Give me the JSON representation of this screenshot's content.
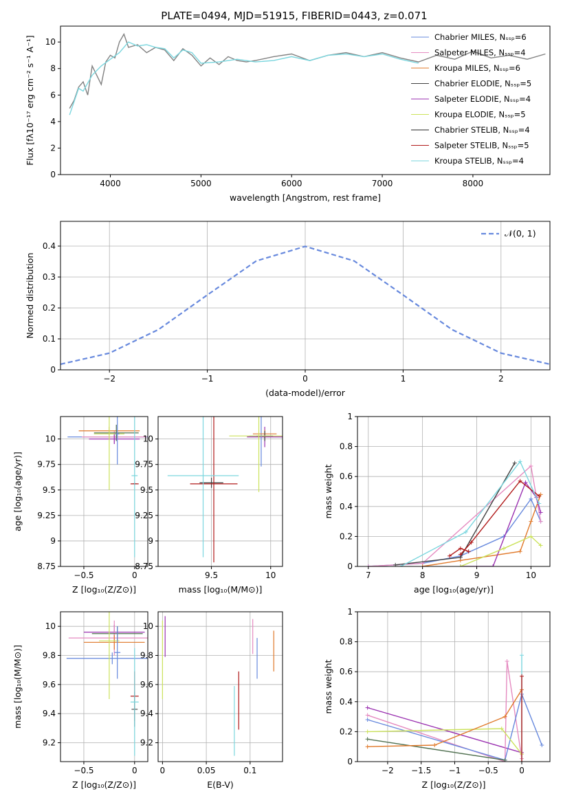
{
  "figure": {
    "title": "PLATE=0494, MJD=51915, FIBERID=0443, z=0.071",
    "colors": {
      "gray": "#808080",
      "blue": "#6688dd",
      "pink": "#e58ac0",
      "orange": "#e07828",
      "dark": "#404040",
      "purple": "#9a30b0",
      "yellow": "#cbe25a",
      "black": "#202020",
      "red": "#b01818",
      "cyan": "#7ad6de",
      "green": "#507050"
    }
  },
  "panels": [
    {
      "id": "spectrum",
      "type": "line",
      "xlabel": "wavelength [Angstrom, rest frame]",
      "ylabel": "Flux [fλ10⁻¹⁷ erg cm⁻² s⁻¹ A⁻¹]",
      "xlim": [
        3450,
        8850
      ],
      "ylim": [
        0,
        11.2
      ],
      "xticks": [
        4000,
        5000,
        6000,
        7000,
        8000
      ],
      "yticks": [
        0,
        2,
        4,
        6,
        8,
        10
      ],
      "legend": [
        {
          "label": "Chabrier MILES, Nₛₛₚ=6",
          "color": "blue"
        },
        {
          "label": "Salpeter MILES, Nₛₛₚ=4",
          "color": "pink"
        },
        {
          "label": "Kroupa MILES, Nₛₛₚ=6",
          "color": "orange"
        },
        {
          "label": "Chabrier ELODIE, Nₛₛₚ=5",
          "color": "dark"
        },
        {
          "label": "Salpeter ELODIE, Nₛₛₚ=4",
          "color": "purple"
        },
        {
          "label": "Kroupa ELODIE, Nₛₛₚ=5",
          "color": "yellow"
        },
        {
          "label": "Chabrier STELIB, Nₛₛₚ=4",
          "color": "black"
        },
        {
          "label": "Salpeter STELIB, Nₛₛₚ=5",
          "color": "red"
        },
        {
          "label": "Kroupa STELIB, Nₛₛₚ=4",
          "color": "cyan"
        }
      ],
      "series": [
        {
          "color": "gray",
          "x": [
            3550,
            3600,
            3650,
            3700,
            3750,
            3800,
            3850,
            3900,
            3950,
            4000,
            4050,
            4100,
            4150,
            4200,
            4300,
            4400,
            4500,
            4600,
            4700,
            4800,
            4900,
            5000,
            5100,
            5200,
            5300,
            5400,
            5500,
            5600,
            5800,
            6000,
            6200,
            6400,
            6600,
            6800,
            7000,
            7200,
            7400,
            7600,
            7800,
            8000,
            8200,
            8400,
            8600,
            8800
          ],
          "y": [
            5.0,
            5.6,
            6.6,
            7.0,
            6.0,
            8.2,
            7.5,
            6.8,
            8.5,
            9.0,
            8.8,
            10.0,
            10.6,
            9.6,
            9.8,
            9.2,
            9.6,
            9.4,
            8.6,
            9.5,
            9.0,
            8.2,
            8.8,
            8.3,
            8.9,
            8.6,
            8.5,
            8.6,
            8.9,
            9.1,
            8.6,
            9.0,
            9.2,
            8.9,
            9.2,
            8.8,
            8.5,
            9.0,
            8.7,
            9.3,
            8.8,
            9.0,
            8.7,
            9.1
          ]
        },
        {
          "color": "cyan",
          "x": [
            3550,
            3600,
            3650,
            3700,
            3800,
            3900,
            4000,
            4100,
            4200,
            4300,
            4400,
            4500,
            4600,
            4700,
            4800,
            4900,
            5000,
            5200,
            5400,
            5600,
            5800,
            6000,
            6200,
            6400,
            6600,
            6800,
            7000,
            7200,
            7400
          ],
          "y": [
            4.5,
            5.5,
            6.5,
            6.3,
            7.5,
            8.2,
            8.7,
            9.2,
            10.0,
            9.7,
            9.8,
            9.6,
            9.5,
            8.8,
            9.4,
            9.2,
            8.4,
            8.5,
            8.7,
            8.5,
            8.6,
            8.9,
            8.6,
            9.0,
            9.1,
            8.9,
            9.1,
            8.7,
            8.4
          ]
        }
      ]
    },
    {
      "id": "residuals",
      "type": "line",
      "xlabel": "(data-model)/error",
      "ylabel": "Normed distribution",
      "xlim": [
        -2.5,
        2.5
      ],
      "ylim": [
        0,
        0.48
      ],
      "xticks": [
        -2,
        -1,
        0,
        1,
        2
      ],
      "yticks": [
        0.0,
        0.1,
        0.2,
        0.3,
        0.4
      ],
      "legend": [
        {
          "label": "𝒩(0, 1)",
          "color": "blue"
        }
      ],
      "series": [
        {
          "color": "blue",
          "x": [
            -2.5,
            -2.0,
            -1.5,
            -1.0,
            -0.5,
            0.0,
            0.5,
            1.0,
            1.5,
            2.0,
            2.5
          ],
          "y": [
            0.018,
            0.054,
            0.13,
            0.242,
            0.352,
            0.399,
            0.352,
            0.242,
            0.13,
            0.054,
            0.018
          ]
        }
      ]
    },
    {
      "id": "age-vs-Z",
      "type": "scatter",
      "xlabel": "Z [log₁₀(Z/Z⊙)]",
      "ylabel": "age  [log₁₀(age/yr)]",
      "xlim": [
        -0.73,
        0.13
      ],
      "ylim": [
        8.75,
        10.22
      ],
      "xticks": [
        -0.5,
        0.0
      ],
      "yticks": [
        8.75,
        9.0,
        9.25,
        9.5,
        9.75,
        10.0
      ],
      "points": [
        {
          "x": -0.18,
          "y": 10.02,
          "xerr": 0.48,
          "yerr": 0.03,
          "color": "blue"
        },
        {
          "x": -0.2,
          "y": 10.02,
          "xerr": 0.32,
          "yerr": 0.06,
          "color": "pink"
        },
        {
          "x": -0.25,
          "y": 10.08,
          "xerr": 0.3,
          "yerr": 0.04,
          "color": "orange"
        },
        {
          "x": -0.18,
          "y": 10.06,
          "xerr": 0.22,
          "yerr": 0.08,
          "color": "green"
        },
        {
          "x": -0.2,
          "y": 10.0,
          "xerr": 0.25,
          "yerr": 0.05,
          "color": "purple"
        },
        {
          "x": -0.25,
          "y": 10.05,
          "xerr": 0.15,
          "yerr": 0.55,
          "color": "yellow"
        },
        {
          "x": 0.0,
          "y": 9.56,
          "xerr": 0.02,
          "yerr": 0.01,
          "color": "dark"
        },
        {
          "x": 0.0,
          "y": 9.56,
          "xerr": 0.04,
          "yerr": 0.01,
          "color": "red"
        },
        {
          "x": 0.0,
          "y": 9.64,
          "xerr": 0.03,
          "yerr": 0.8,
          "color": "cyan"
        },
        {
          "x": -0.17,
          "y": 10.05,
          "xerr": 0.02,
          "yerr": 0.3,
          "color": "blue"
        }
      ]
    },
    {
      "id": "age-vs-mass",
      "type": "scatter",
      "xlabel": "mass [log₁₀(M/M⊙)]",
      "ylabel": "",
      "xlim": [
        9.05,
        10.1
      ],
      "ylim": [
        8.75,
        10.22
      ],
      "xticks": [
        9.5,
        10.0
      ],
      "yticks": [
        8.75,
        9.0,
        9.25,
        9.5,
        9.75,
        10.0
      ],
      "points": [
        {
          "x": 9.95,
          "y": 10.02,
          "xerr": 0.15,
          "yerr": 0.1,
          "color": "purple"
        },
        {
          "x": 9.92,
          "y": 10.03,
          "xerr": 0.1,
          "yerr": 0.3,
          "color": "blue"
        },
        {
          "x": 9.95,
          "y": 10.05,
          "xerr": 0.1,
          "yerr": 0.04,
          "color": "orange"
        },
        {
          "x": 9.95,
          "y": 10.03,
          "xerr": 0.07,
          "yerr": 0.05,
          "color": "dark"
        },
        {
          "x": 9.9,
          "y": 10.03,
          "xerr": 0.25,
          "yerr": 0.55,
          "color": "yellow"
        },
        {
          "x": 9.5,
          "y": 9.57,
          "xerr": 0.1,
          "yerr": 0.05,
          "color": "dark"
        },
        {
          "x": 9.52,
          "y": 9.56,
          "xerr": 0.2,
          "yerr": 0.77,
          "color": "red"
        },
        {
          "x": 9.43,
          "y": 9.64,
          "xerr": 0.3,
          "yerr": 0.8,
          "color": "cyan"
        }
      ]
    },
    {
      "id": "weight-vs-age",
      "type": "line",
      "xlabel": "age  [log₁₀(age/yr)]",
      "ylabel": "mass weight",
      "xlim": [
        6.8,
        10.35
      ],
      "ylim": [
        0,
        1.0
      ],
      "xticks": [
        7,
        8,
        9,
        10
      ],
      "yticks": [
        0.0,
        0.2,
        0.4,
        0.6,
        0.8,
        1.0
      ],
      "series": [
        {
          "color": "blue",
          "x": [
            7.0,
            8.0,
            8.7,
            9.5,
            10.0,
            10.18
          ],
          "y": [
            0.0,
            0.02,
            0.07,
            0.2,
            0.45,
            0.3
          ]
        },
        {
          "color": "pink",
          "x": [
            7.0,
            8.0,
            10.0,
            10.18
          ],
          "y": [
            0.0,
            0.02,
            0.67,
            0.3
          ]
        },
        {
          "color": "orange",
          "x": [
            8.0,
            8.7,
            9.8,
            10.0,
            10.18
          ],
          "y": [
            0.0,
            0.04,
            0.1,
            0.3,
            0.48
          ]
        },
        {
          "color": "dark",
          "x": [
            7.5,
            8.7,
            9.7
          ],
          "y": [
            0.01,
            0.06,
            0.69
          ]
        },
        {
          "color": "purple",
          "x": [
            8.7,
            9.3,
            9.9,
            10.1,
            10.18
          ],
          "y": [
            0.0,
            0.0,
            0.56,
            0.46,
            0.36
          ]
        },
        {
          "color": "yellow",
          "x": [
            8.7,
            9.5,
            10.0,
            10.18
          ],
          "y": [
            0.0,
            0.12,
            0.2,
            0.14
          ]
        },
        {
          "color": "red",
          "x": [
            8.7,
            8.9,
            9.8,
            10.15
          ],
          "y": [
            0.08,
            0.16,
            0.57,
            0.47
          ]
        },
        {
          "color": "cyan",
          "x": [
            7.6,
            8.8,
            9.8,
            10.15
          ],
          "y": [
            0.0,
            0.23,
            0.7,
            0.42
          ]
        },
        {
          "color": "red",
          "x": [
            8.5,
            8.7,
            8.85
          ],
          "y": [
            0.07,
            0.12,
            0.1
          ]
        }
      ]
    },
    {
      "id": "mass-vs-Z",
      "type": "scatter",
      "xlabel": "Z [log₁₀(Z/Z⊙)]",
      "ylabel": "mass [log₁₀(M/M⊙)]",
      "xlim": [
        -0.73,
        0.13
      ],
      "ylim": [
        9.07,
        10.1
      ],
      "xticks": [
        -0.5,
        0.0
      ],
      "yticks": [
        9.2,
        9.4,
        9.6,
        9.8,
        10.0
      ],
      "points": [
        {
          "x": -0.2,
          "y": 9.96,
          "xerr": 0.3,
          "yerr": 0.05,
          "color": "purple"
        },
        {
          "x": -0.2,
          "y": 9.92,
          "xerr": 0.45,
          "yerr": 0.12,
          "color": "pink"
        },
        {
          "x": -0.2,
          "y": 9.89,
          "xerr": 0.3,
          "yerr": 0.05,
          "color": "orange"
        },
        {
          "x": -0.17,
          "y": 9.95,
          "xerr": 0.25,
          "yerr": 0.05,
          "color": "green"
        },
        {
          "x": -0.22,
          "y": 9.78,
          "xerr": 0.45,
          "yerr": 0.04,
          "color": "blue"
        },
        {
          "x": -0.25,
          "y": 9.9,
          "xerr": 0.1,
          "yerr": 0.4,
          "color": "yellow"
        },
        {
          "x": -0.17,
          "y": 9.82,
          "xerr": 0.03,
          "yerr": 0.18,
          "color": "blue"
        },
        {
          "x": 0.0,
          "y": 9.52,
          "xerr": 0.04,
          "yerr": 0.17,
          "color": "red"
        },
        {
          "x": 0.0,
          "y": 9.43,
          "xerr": 0.03,
          "yerr": 0.12,
          "color": "dark"
        },
        {
          "x": 0.0,
          "y": 9.48,
          "xerr": 0.04,
          "yerr": 0.37,
          "color": "cyan"
        }
      ]
    },
    {
      "id": "mass-vs-EBV",
      "type": "scatter",
      "xlabel": "E(B-V)",
      "ylabel": "",
      "xlim": [
        -0.005,
        0.137
      ],
      "ylim": [
        9.07,
        10.1
      ],
      "xticks": [
        0.0,
        0.05,
        0.1
      ],
      "yticks": [
        9.2,
        9.4,
        9.6,
        9.8,
        10.0
      ],
      "points": [
        {
          "x": 0.0,
          "y": 9.77,
          "xerr": 0.0,
          "yerr": 0.27,
          "color": "yellow"
        },
        {
          "x": 0.003,
          "y": 9.93,
          "xerr": 0.0,
          "yerr": 0.14,
          "color": "purple"
        },
        {
          "x": 0.082,
          "y": 9.35,
          "xerr": 0.0,
          "yerr": 0.24,
          "color": "cyan"
        },
        {
          "x": 0.087,
          "y": 9.49,
          "xerr": 0.0,
          "yerr": 0.2,
          "color": "red"
        },
        {
          "x": 0.103,
          "y": 9.93,
          "xerr": 0.0,
          "yerr": 0.12,
          "color": "pink"
        },
        {
          "x": 0.108,
          "y": 9.78,
          "xerr": 0.0,
          "yerr": 0.14,
          "color": "blue"
        },
        {
          "x": 0.127,
          "y": 9.83,
          "xerr": 0.0,
          "yerr": 0.14,
          "color": "orange"
        }
      ]
    },
    {
      "id": "weight-vs-Z",
      "type": "line",
      "xlabel": "Z [log₁₀(Z/Z⊙)]",
      "ylabel": "mass weight",
      "xlim": [
        -2.45,
        0.42
      ],
      "ylim": [
        0,
        1.0
      ],
      "xticks": [
        -2.0,
        -1.5,
        -1.0,
        -0.5,
        0.0
      ],
      "yticks": [
        0.0,
        0.2,
        0.4,
        0.6,
        0.8,
        1.0
      ],
      "series": [
        {
          "color": "purple",
          "x": [
            -2.3,
            0.0
          ],
          "y": [
            0.36,
            0.06
          ]
        },
        {
          "color": "pink",
          "x": [
            -2.3,
            -0.25,
            -0.22,
            0.0
          ],
          "y": [
            0.31,
            0.0,
            0.67,
            0.02
          ]
        },
        {
          "color": "blue",
          "x": [
            -2.3,
            -0.25,
            0.0,
            0.3
          ],
          "y": [
            0.28,
            0.01,
            0.45,
            0.11
          ]
        },
        {
          "color": "yellow",
          "x": [
            -2.3,
            -0.3,
            0.0
          ],
          "y": [
            0.2,
            0.22,
            0.05
          ]
        },
        {
          "color": "green",
          "x": [
            -2.3,
            -0.25
          ],
          "y": [
            0.15,
            0.01
          ]
        },
        {
          "color": "orange",
          "x": [
            -2.3,
            -1.3,
            -0.25,
            0.0
          ],
          "y": [
            0.1,
            0.11,
            0.3,
            0.48
          ]
        },
        {
          "color": "cyan",
          "x": [
            0.0,
            0.0
          ],
          "y": [
            0.0,
            0.71
          ]
        },
        {
          "color": "red",
          "x": [
            0.0,
            0.0
          ],
          "y": [
            0.0,
            0.57
          ]
        }
      ]
    }
  ]
}
